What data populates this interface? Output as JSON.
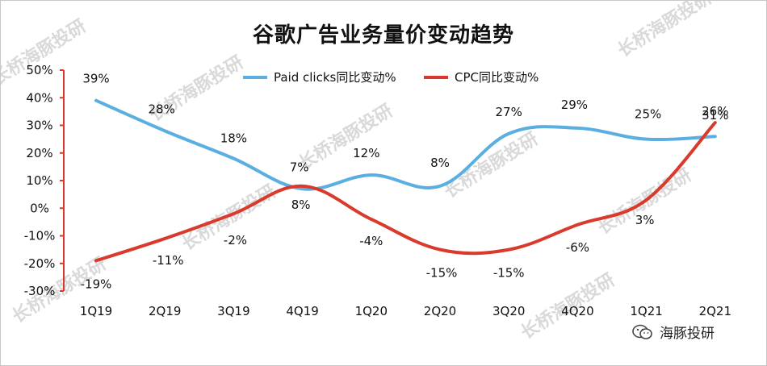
{
  "chart_data": {
    "type": "line",
    "title": "谷歌广告业务量价变动趋势",
    "categories": [
      "1Q19",
      "2Q19",
      "3Q19",
      "4Q19",
      "1Q20",
      "2Q20",
      "3Q20",
      "4Q20",
      "1Q21",
      "2Q21"
    ],
    "yticks": [
      "50%",
      "40%",
      "30%",
      "20%",
      "10%",
      "0%",
      "-10%",
      "-20%",
      "-30%"
    ],
    "ylim": [
      -30,
      50
    ],
    "grid": false,
    "legend": "top",
    "series": [
      {
        "name": "Paid clicks同比变动%",
        "color": "#5aaee0",
        "values": [
          39,
          28,
          18,
          7,
          12,
          8,
          27,
          29,
          25,
          26
        ],
        "labels": [
          "39%",
          "28%",
          "18%",
          "7%",
          "12%",
          "8%",
          "27%",
          "29%",
          "25%",
          "26%"
        ]
      },
      {
        "name": "CPC同比变动%",
        "color": "#d93a2b",
        "values": [
          -19,
          -11,
          -2,
          8,
          -4,
          -15,
          -15,
          -6,
          3,
          31
        ],
        "labels": [
          "-19%",
          "-11%",
          "-2%",
          "8%",
          "-4%",
          "-15%",
          "-15%",
          "-6%",
          "3%",
          "31%"
        ]
      }
    ]
  },
  "watermark": "长桥海豚投研",
  "wechat_tag": "海豚投研"
}
